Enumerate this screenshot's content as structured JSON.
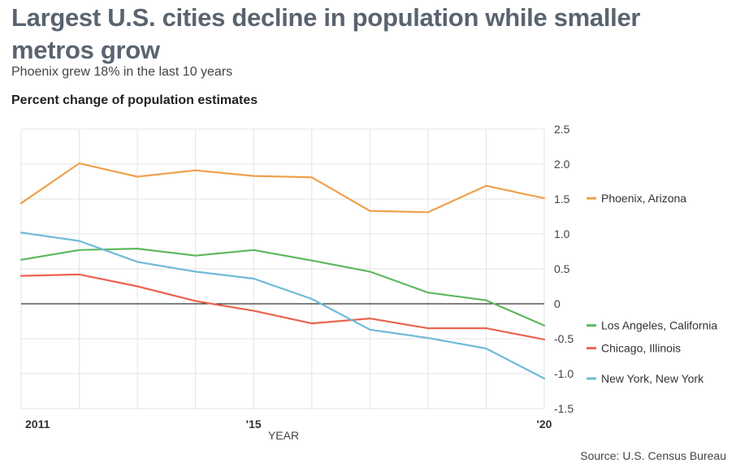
{
  "header": {
    "title": "Largest U.S. cities decline in population while smaller metros grow",
    "subtitle": "Phoenix grew 18% in the last 10 years",
    "chart_heading": "Percent change of population estimates"
  },
  "footer": {
    "source": "Source: U.S. Census Bureau"
  },
  "chart_data": {
    "type": "line",
    "title": "Largest U.S. cities decline in population while smaller metros grow",
    "subtitle": "Phoenix grew 18% in the last 10 years",
    "ylabel": "Percent change of population estimates",
    "xlabel": "YEAR",
    "x": [
      2011,
      2012,
      2013,
      2014,
      2015,
      2016,
      2017,
      2018,
      2019,
      2020
    ],
    "x_tick_values": [
      2011,
      2015,
      2020
    ],
    "x_tick_labels": [
      "2011",
      "'15",
      "'20"
    ],
    "xlim": [
      2011,
      2020
    ],
    "ylim": [
      -1.5,
      2.5
    ],
    "y_ticks": [
      2.5,
      2.0,
      1.5,
      1.0,
      0.5,
      0,
      -0.5,
      -1.0,
      -1.5
    ],
    "y_tick_labels": [
      "2.5",
      "2.0",
      "1.5",
      "1.0",
      "0.5",
      "0",
      "-0.5",
      "-1.0",
      "-1.5"
    ],
    "grid": true,
    "legend_position": "right, labels at line ends",
    "series": [
      {
        "name": "Phoenix, Arizona",
        "color": "#f0a04b",
        "values": [
          1.44,
          2.01,
          1.82,
          1.91,
          1.83,
          1.81,
          1.33,
          1.31,
          1.69,
          1.51
        ]
      },
      {
        "name": "Los Angeles, California",
        "color": "#5cb85c",
        "values": [
          0.63,
          0.77,
          0.79,
          0.69,
          0.77,
          0.62,
          0.46,
          0.16,
          0.05,
          -0.31
        ]
      },
      {
        "name": "Chicago, Illinois",
        "color": "#ea6450",
        "values": [
          0.4,
          0.42,
          0.25,
          0.04,
          -0.1,
          -0.28,
          -0.21,
          -0.35,
          -0.35,
          -0.51
        ]
      },
      {
        "name": "New York, New York",
        "color": "#6fbad8",
        "values": [
          1.02,
          0.9,
          0.6,
          0.46,
          0.36,
          0.07,
          -0.37,
          -0.49,
          -0.64,
          -1.07
        ]
      }
    ]
  }
}
